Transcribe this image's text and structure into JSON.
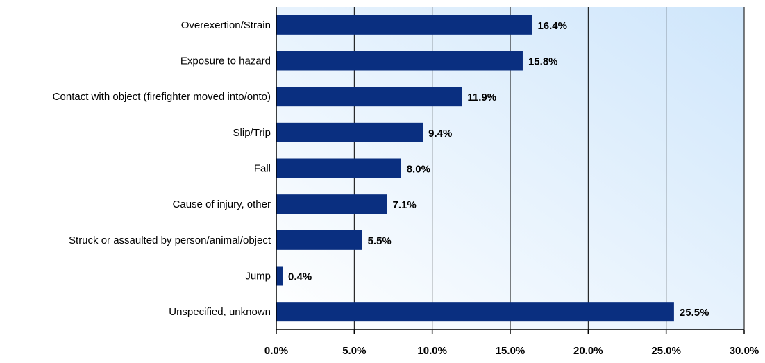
{
  "chart_data": {
    "type": "bar",
    "orientation": "horizontal",
    "categories": [
      "Overexertion/Strain",
      "Exposure to hazard",
      "Contact with object (firefighter moved into/onto)",
      "Slip/Trip",
      "Fall",
      "Cause of injury, other",
      "Struck or assaulted by person/animal/object",
      "Jump",
      "Unspecified, unknown"
    ],
    "values": [
      16.4,
      15.8,
      11.9,
      9.4,
      8.0,
      7.1,
      5.5,
      0.4,
      25.5
    ],
    "value_labels": [
      "16.4%",
      "15.8%",
      "11.9%",
      "9.4%",
      "8.0%",
      "7.1%",
      "5.5%",
      "0.4%",
      "25.5%"
    ],
    "xlim": [
      0,
      30
    ],
    "xticks": [
      0,
      5,
      10,
      15,
      20,
      25,
      30
    ],
    "xtick_labels": [
      "0.0%",
      "5.0%",
      "10.0%",
      "15.0%",
      "20.0%",
      "25.0%",
      "30.0%"
    ],
    "title": "",
    "xlabel": "",
    "ylabel": "",
    "grid": "vertical",
    "legend": "none",
    "colors": {
      "bar": "#0a2f80",
      "plot_bg_light": "#ffffff",
      "plot_bg_dark": "#cfe6fb"
    }
  }
}
